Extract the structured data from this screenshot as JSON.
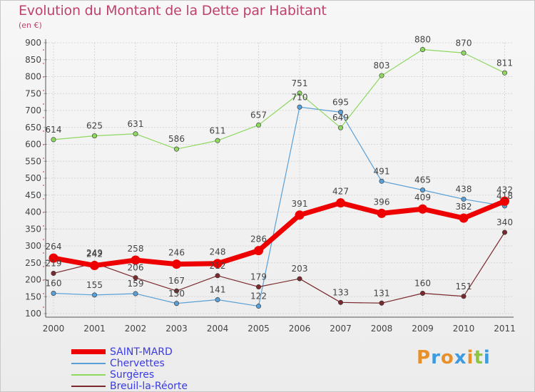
{
  "title": "Evolution du Montant de la Dette par Habitant",
  "unit": "(en €)",
  "brand": {
    "letters": [
      "P",
      "r",
      "o",
      "x",
      "i",
      "t",
      "i"
    ],
    "colors": [
      "#e8912a",
      "#3d9be0",
      "#e8912a",
      "#3d9be0",
      "#e8912a",
      "#8cc63f",
      "#3d9be0"
    ]
  },
  "chart_data": {
    "type": "line",
    "categories": [
      "2000",
      "2001",
      "2002",
      "2003",
      "2004",
      "2005",
      "2006",
      "2007",
      "2008",
      "2009",
      "2010",
      "2011"
    ],
    "ylim": [
      100,
      900
    ],
    "yticks": [
      100,
      150,
      200,
      250,
      300,
      350,
      400,
      450,
      500,
      550,
      600,
      650,
      700,
      750,
      800,
      850,
      900
    ],
    "grid": true,
    "legend_position": "bottom-left",
    "series": [
      {
        "name": "SAINT-MARD",
        "color": "#ee0000",
        "width": 7,
        "values": [
          264,
          242,
          258,
          246,
          248,
          286,
          391,
          427,
          396,
          409,
          382,
          432
        ]
      },
      {
        "name": "Chervettes",
        "color": "#5aa0d6",
        "width": 1.2,
        "values": [
          160,
          155,
          159,
          130,
          141,
          122,
          710,
          695,
          491,
          465,
          438,
          418
        ]
      },
      {
        "name": "Surgères",
        "color": "#8ed860",
        "width": 1.2,
        "values": [
          614,
          625,
          631,
          586,
          611,
          657,
          751,
          649,
          803,
          880,
          870,
          811
        ]
      },
      {
        "name": "Breuil-la-Réorte",
        "color": "#7a2a2e",
        "width": 1.2,
        "values": [
          219,
          249,
          206,
          167,
          212,
          179,
          203,
          133,
          131,
          160,
          151,
          340
        ]
      }
    ]
  }
}
